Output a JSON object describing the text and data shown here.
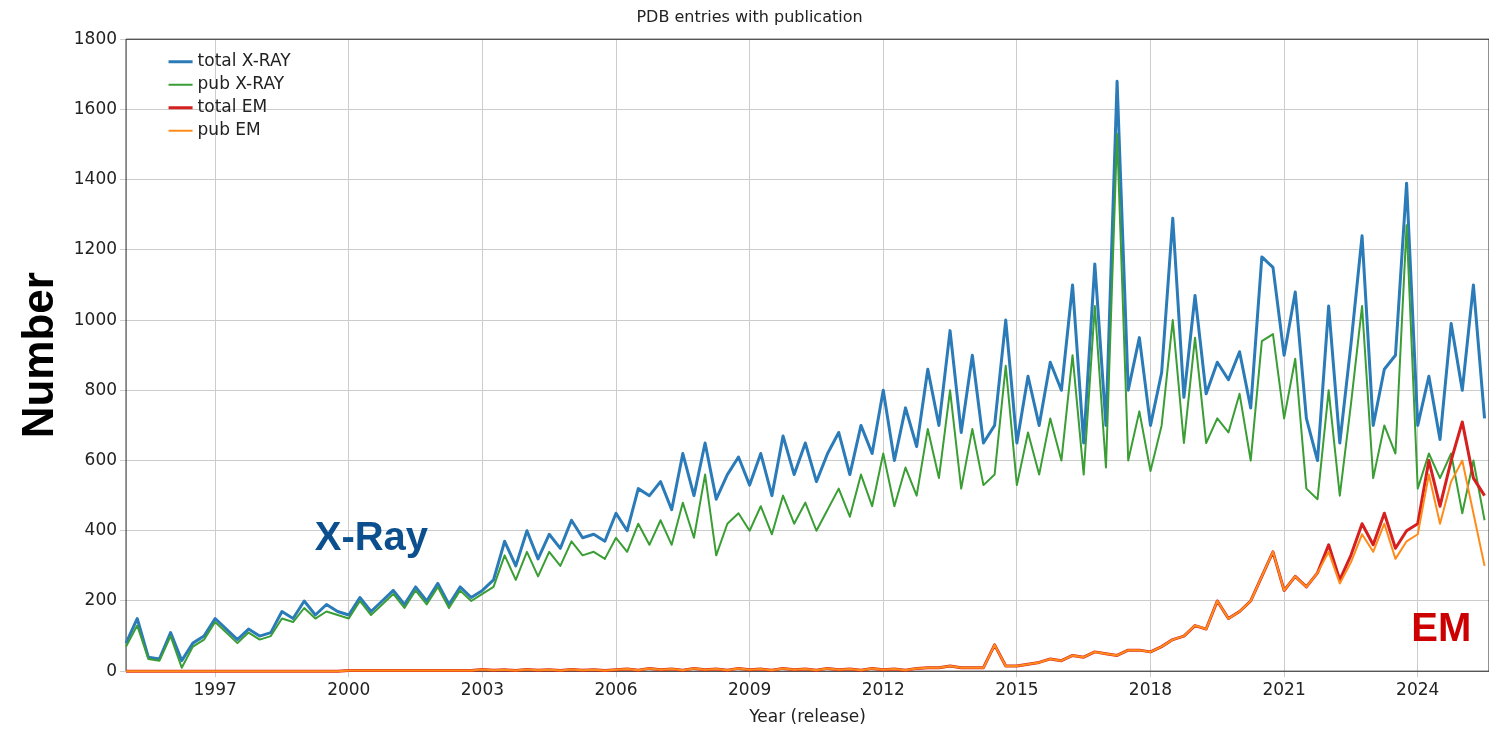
{
  "chart_data": {
    "type": "line",
    "title": "PDB entries with publication",
    "xlabel": "Year (release)",
    "ylabel": "Number",
    "x": [
      1995,
      1995.25,
      1995.5,
      1995.75,
      1996,
      1996.25,
      1996.5,
      1996.75,
      1997,
      1997.25,
      1997.5,
      1997.75,
      1998,
      1998.25,
      1998.5,
      1998.75,
      1999,
      1999.25,
      1999.5,
      1999.75,
      2000,
      2000.25,
      2000.5,
      2000.75,
      2001,
      2001.25,
      2001.5,
      2001.75,
      2002,
      2002.25,
      2002.5,
      2002.75,
      2003,
      2003.25,
      2003.5,
      2003.75,
      2004,
      2004.25,
      2004.5,
      2004.75,
      2005,
      2005.25,
      2005.5,
      2005.75,
      2006,
      2006.25,
      2006.5,
      2006.75,
      2007,
      2007.25,
      2007.5,
      2007.75,
      2008,
      2008.25,
      2008.5,
      2008.75,
      2009,
      2009.25,
      2009.5,
      2009.75,
      2010,
      2010.25,
      2010.5,
      2010.75,
      2011,
      2011.25,
      2011.5,
      2011.75,
      2012,
      2012.25,
      2012.5,
      2012.75,
      2013,
      2013.25,
      2013.5,
      2013.75,
      2014,
      2014.25,
      2014.5,
      2014.75,
      2015,
      2015.25,
      2015.5,
      2015.75,
      2016,
      2016.25,
      2016.5,
      2016.75,
      2017,
      2017.25,
      2017.5,
      2017.75,
      2018,
      2018.25,
      2018.5,
      2018.75,
      2019,
      2019.25,
      2019.5,
      2019.75,
      2020,
      2020.25,
      2020.5,
      2020.75,
      2021,
      2021.25,
      2021.5,
      2021.75,
      2022,
      2022.25,
      2022.5,
      2022.75,
      2023,
      2023.25,
      2023.5,
      2023.75,
      2024,
      2024.25,
      2024.5,
      2024.75,
      2025,
      2025.25,
      2025.5
    ],
    "series": [
      {
        "name": "total X-RAY",
        "color": "#2b7bb9",
        "values": [
          80,
          150,
          40,
          35,
          110,
          30,
          80,
          100,
          150,
          120,
          90,
          120,
          100,
          110,
          170,
          150,
          200,
          160,
          190,
          170,
          160,
          210,
          170,
          200,
          230,
          190,
          240,
          200,
          250,
          190,
          240,
          210,
          230,
          260,
          370,
          300,
          400,
          320,
          390,
          350,
          430,
          380,
          390,
          370,
          450,
          400,
          520,
          500,
          540,
          460,
          620,
          500,
          650,
          490,
          560,
          610,
          530,
          620,
          500,
          670,
          560,
          650,
          540,
          620,
          680,
          560,
          700,
          620,
          800,
          600,
          750,
          640,
          860,
          700,
          970,
          680,
          900,
          650,
          700,
          1000,
          650,
          840,
          700,
          880,
          800,
          1100,
          650,
          1160,
          700,
          1680,
          800,
          950,
          700,
          850,
          1290,
          780,
          1070,
          790,
          880,
          830,
          910,
          750,
          1180,
          1150,
          900,
          1080,
          720,
          600,
          1040,
          650,
          930,
          1240,
          700,
          860,
          900,
          1390,
          700,
          840,
          660,
          990,
          800,
          1100,
          720
        ]
      },
      {
        "name": "pub X-RAY",
        "color": "#3a9e35",
        "values": [
          70,
          130,
          35,
          30,
          100,
          10,
          70,
          90,
          140,
          110,
          80,
          110,
          90,
          100,
          150,
          140,
          180,
          150,
          170,
          160,
          150,
          200,
          160,
          190,
          220,
          180,
          230,
          190,
          240,
          180,
          230,
          200,
          220,
          240,
          330,
          260,
          340,
          270,
          340,
          300,
          370,
          330,
          340,
          320,
          380,
          340,
          420,
          360,
          430,
          360,
          480,
          380,
          560,
          330,
          420,
          450,
          400,
          470,
          390,
          500,
          420,
          480,
          400,
          460,
          520,
          440,
          560,
          470,
          620,
          470,
          580,
          500,
          690,
          550,
          800,
          520,
          690,
          530,
          560,
          870,
          530,
          680,
          560,
          720,
          600,
          900,
          560,
          1040,
          580,
          1530,
          600,
          740,
          570,
          700,
          1000,
          650,
          950,
          650,
          720,
          680,
          790,
          600,
          940,
          960,
          720,
          890,
          520,
          490,
          800,
          500,
          760,
          1040,
          550,
          700,
          620,
          1270,
          520,
          620,
          550,
          620,
          450,
          600,
          430
        ]
      },
      {
        "name": "total EM",
        "color": "#d62020",
        "values": [
          0,
          0,
          0,
          0,
          0,
          0,
          0,
          0,
          0,
          0,
          0,
          0,
          0,
          0,
          0,
          0,
          0,
          0,
          0,
          0,
          2,
          2,
          2,
          2,
          2,
          2,
          2,
          2,
          2,
          2,
          2,
          2,
          5,
          3,
          4,
          2,
          5,
          3,
          4,
          2,
          5,
          3,
          4,
          2,
          4,
          6,
          3,
          8,
          4,
          6,
          3,
          8,
          4,
          6,
          3,
          8,
          4,
          6,
          3,
          8,
          4,
          6,
          3,
          8,
          4,
          6,
          3,
          8,
          4,
          6,
          3,
          8,
          10,
          10,
          15,
          10,
          10,
          10,
          75,
          15,
          15,
          20,
          25,
          35,
          30,
          45,
          40,
          55,
          50,
          45,
          60,
          60,
          55,
          70,
          90,
          100,
          130,
          120,
          200,
          150,
          170,
          200,
          270,
          340,
          230,
          270,
          240,
          280,
          360,
          260,
          330,
          420,
          360,
          450,
          350,
          400,
          420,
          600,
          470,
          600,
          710,
          550,
          500
        ]
      },
      {
        "name": "pub EM",
        "color": "#ff8c1a",
        "values": [
          0,
          0,
          0,
          0,
          0,
          0,
          0,
          0,
          0,
          0,
          0,
          0,
          0,
          0,
          0,
          0,
          0,
          0,
          0,
          0,
          2,
          2,
          2,
          2,
          2,
          2,
          2,
          2,
          2,
          2,
          2,
          2,
          5,
          3,
          4,
          2,
          5,
          3,
          4,
          2,
          5,
          3,
          4,
          2,
          4,
          6,
          3,
          8,
          4,
          6,
          3,
          8,
          4,
          6,
          3,
          8,
          4,
          6,
          3,
          8,
          4,
          6,
          3,
          8,
          4,
          6,
          3,
          8,
          4,
          6,
          3,
          8,
          10,
          10,
          15,
          10,
          10,
          10,
          75,
          15,
          15,
          20,
          25,
          35,
          30,
          45,
          40,
          55,
          50,
          45,
          60,
          60,
          55,
          70,
          90,
          100,
          130,
          120,
          200,
          150,
          170,
          200,
          270,
          340,
          230,
          270,
          240,
          280,
          340,
          250,
          310,
          390,
          340,
          420,
          320,
          370,
          390,
          560,
          420,
          540,
          600,
          450,
          300
        ]
      }
    ],
    "xlim": [
      1995,
      2025.6
    ],
    "xticks": [
      1997,
      2000,
      2003,
      2006,
      2009,
      2012,
      2015,
      2018,
      2021,
      2024
    ],
    "ylim": [
      0,
      1800
    ],
    "yticks": [
      0,
      200,
      400,
      600,
      800,
      1000,
      1200,
      1400,
      1600,
      1800
    ],
    "grid": true,
    "legend": "top left",
    "marker": "none",
    "line_style": "solid",
    "annotations": [
      "X-Ray",
      "EM"
    ]
  }
}
